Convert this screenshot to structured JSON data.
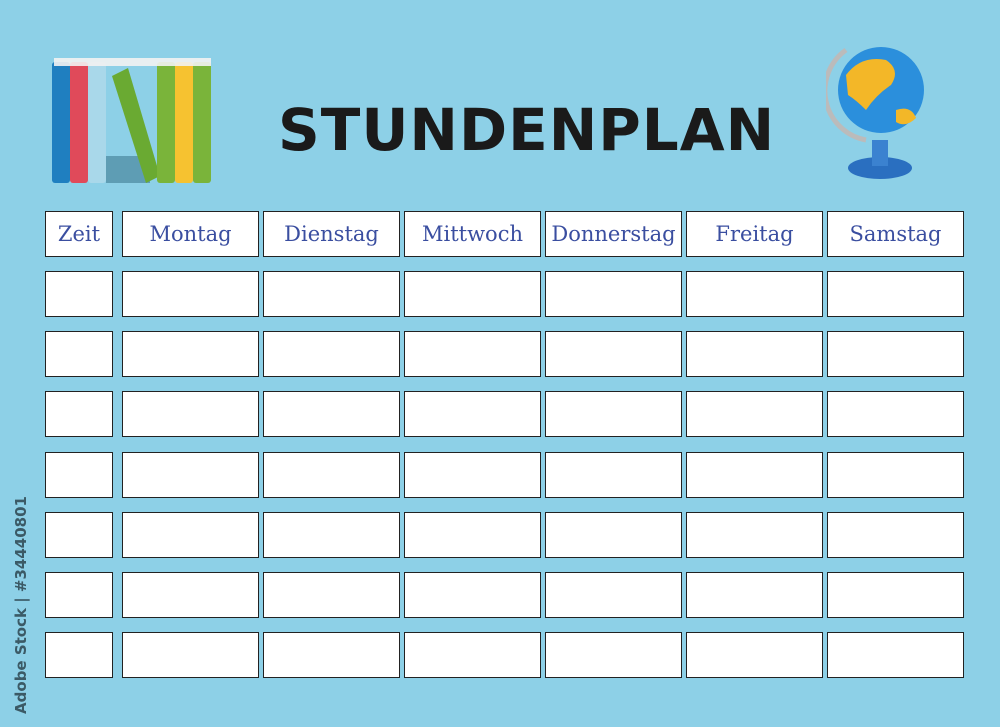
{
  "title": "STUNDENPLAN",
  "columns": [
    "Zeit",
    "Montag",
    "Dienstag",
    "Mittwoch",
    "Donnerstag",
    "Freitag",
    "Samstag"
  ],
  "row_count": 7,
  "watermark": "Adobe Stock | #34440801",
  "icons": {
    "left": "books-icon",
    "right": "globe-icon"
  },
  "colors": {
    "background": "#8dd0e7",
    "header_text": "#3a4ea0",
    "title": "#1a1a1a"
  }
}
